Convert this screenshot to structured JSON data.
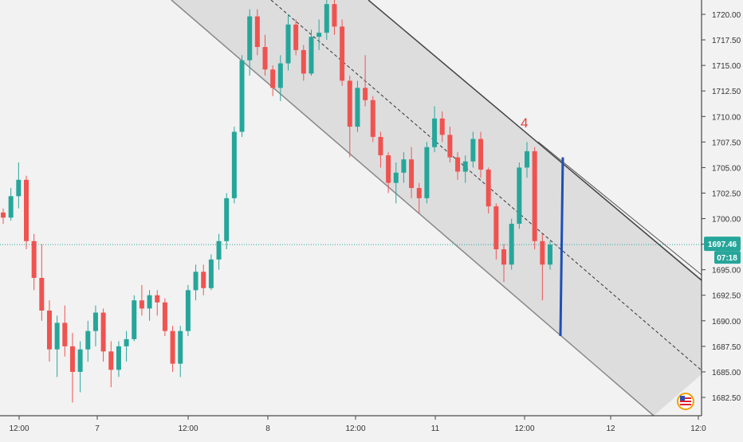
{
  "chart_data": {
    "type": "candlestick",
    "instrument_price_label": "1697.46",
    "countdown_label": "07:18",
    "wave_label": "4",
    "y_axis": {
      "min": 1680.0,
      "max": 1722.0,
      "ticks": [
        "1720.00",
        "1717.50",
        "1715.00",
        "1712.50",
        "1710.00",
        "1707.50",
        "1705.00",
        "1702.50",
        "1700.00",
        "1697.50",
        "1695.00",
        "1692.50",
        "1690.00",
        "1687.50",
        "1685.00",
        "1682.50"
      ]
    },
    "x_axis": {
      "ticks": [
        "12:00",
        "7",
        "12:00",
        "8",
        "12:00",
        "11",
        "12:00",
        "12",
        "12:0"
      ]
    },
    "current_price": 1697.46,
    "channel": {
      "upper": {
        "from": [
          0.0,
          1722.0
        ],
        "to": [
          1.0,
          1694.0
        ]
      },
      "lower": {
        "from": [
          0.0,
          1722.0
        ],
        "to": [
          0.75,
          1681.0
        ],
        "through": [
          1.0,
          1671.0
        ]
      },
      "middle": {
        "from": [
          0.34,
          1722.0
        ],
        "to": [
          1.0,
          1685.0
        ]
      }
    },
    "marker_line": {
      "x": 0.742,
      "from": 1706.0,
      "to": 1688.5
    },
    "colors": {
      "up": "#26a69a",
      "down": "#ef5350",
      "channel_fill": "#d9d9da",
      "price_line": "#26a69a",
      "marker": "#1e4fb5",
      "wave_label": "#e0403a",
      "axis_text": "#333333"
    },
    "candles_ohlc_sampled": [
      [
        1700.6,
        1701.0,
        1699.5,
        1700.1
      ],
      [
        1700.1,
        1703.0,
        1699.8,
        1702.2
      ],
      [
        1702.2,
        1705.5,
        1701.0,
        1703.8
      ],
      [
        1703.8,
        1704.2,
        1697.0,
        1697.8
      ],
      [
        1697.8,
        1698.5,
        1693.0,
        1694.2
      ],
      [
        1694.2,
        1697.5,
        1690.0,
        1691.0
      ],
      [
        1691.0,
        1692.0,
        1686.0,
        1687.2
      ],
      [
        1687.2,
        1690.5,
        1684.5,
        1689.8
      ],
      [
        1689.8,
        1691.5,
        1686.5,
        1687.5
      ],
      [
        1687.5,
        1688.8,
        1682.0,
        1685.0
      ],
      [
        1685.0,
        1688.0,
        1683.0,
        1687.2
      ],
      [
        1687.2,
        1690.0,
        1686.0,
        1689.0
      ],
      [
        1689.0,
        1691.5,
        1687.5,
        1690.8
      ],
      [
        1690.8,
        1691.2,
        1686.0,
        1687.0
      ],
      [
        1687.0,
        1688.0,
        1683.5,
        1685.2
      ],
      [
        1685.2,
        1688.0,
        1684.5,
        1687.5
      ],
      [
        1687.5,
        1689.0,
        1686.0,
        1688.2
      ],
      [
        1688.2,
        1692.5,
        1688.0,
        1692.0
      ],
      [
        1692.0,
        1693.5,
        1690.5,
        1691.2
      ],
      [
        1691.2,
        1693.0,
        1690.0,
        1692.5
      ],
      [
        1692.5,
        1693.0,
        1690.5,
        1691.8
      ],
      [
        1691.8,
        1692.2,
        1688.5,
        1689.0
      ],
      [
        1689.0,
        1689.5,
        1685.0,
        1685.8
      ],
      [
        1685.8,
        1689.5,
        1684.5,
        1689.0
      ],
      [
        1689.0,
        1693.5,
        1688.5,
        1693.0
      ],
      [
        1693.0,
        1695.5,
        1692.0,
        1694.8
      ],
      [
        1694.8,
        1695.5,
        1692.5,
        1693.2
      ],
      [
        1693.2,
        1696.5,
        1693.0,
        1696.0
      ],
      [
        1696.0,
        1698.5,
        1695.0,
        1697.8
      ],
      [
        1697.8,
        1702.5,
        1697.0,
        1702.0
      ],
      [
        1702.0,
        1709.0,
        1701.5,
        1708.5
      ],
      [
        1708.5,
        1716.0,
        1708.0,
        1715.5
      ],
      [
        1715.5,
        1720.5,
        1714.0,
        1719.8
      ],
      [
        1719.8,
        1720.5,
        1716.0,
        1716.8
      ],
      [
        1716.8,
        1718.0,
        1714.0,
        1714.6
      ],
      [
        1714.6,
        1715.0,
        1712.0,
        1712.8
      ],
      [
        1712.8,
        1716.0,
        1711.5,
        1715.2
      ],
      [
        1715.2,
        1720.0,
        1714.5,
        1719.0
      ],
      [
        1719.0,
        1719.5,
        1716.0,
        1716.5
      ],
      [
        1716.5,
        1717.0,
        1713.5,
        1714.2
      ],
      [
        1714.2,
        1718.5,
        1714.0,
        1717.8
      ],
      [
        1717.8,
        1719.5,
        1716.5,
        1718.2
      ],
      [
        1718.2,
        1722.0,
        1717.5,
        1721.0
      ],
      [
        1721.0,
        1721.5,
        1718.0,
        1718.8
      ],
      [
        1718.8,
        1719.5,
        1713.0,
        1713.5
      ],
      [
        1713.5,
        1714.0,
        1706.0,
        1709.0
      ],
      [
        1709.0,
        1713.5,
        1708.5,
        1712.8
      ],
      [
        1712.8,
        1716.0,
        1711.0,
        1711.6
      ],
      [
        1711.6,
        1712.0,
        1707.5,
        1708.0
      ],
      [
        1708.0,
        1708.5,
        1705.0,
        1706.2
      ],
      [
        1706.2,
        1706.5,
        1702.5,
        1703.5
      ],
      [
        1703.5,
        1705.5,
        1701.5,
        1704.5
      ],
      [
        1704.5,
        1706.5,
        1703.5,
        1705.8
      ],
      [
        1705.8,
        1707.0,
        1702.0,
        1703.0
      ],
      [
        1703.0,
        1703.5,
        1700.5,
        1702.0
      ],
      [
        1702.0,
        1707.5,
        1701.5,
        1707.0
      ],
      [
        1707.0,
        1711.0,
        1706.5,
        1709.8
      ],
      [
        1709.8,
        1710.5,
        1707.5,
        1708.2
      ],
      [
        1708.2,
        1709.0,
        1705.5,
        1706.0
      ],
      [
        1706.0,
        1706.5,
        1703.8,
        1704.6
      ],
      [
        1704.6,
        1706.2,
        1703.5,
        1705.6
      ],
      [
        1705.6,
        1708.5,
        1705.0,
        1707.8
      ],
      [
        1707.8,
        1708.5,
        1704.0,
        1704.8
      ],
      [
        1704.8,
        1705.0,
        1700.5,
        1701.2
      ],
      [
        1701.2,
        1701.5,
        1696.0,
        1697.0
      ],
      [
        1697.0,
        1697.5,
        1693.8,
        1695.5
      ],
      [
        1695.5,
        1700.0,
        1695.0,
        1699.5
      ],
      [
        1699.5,
        1705.5,
        1699.0,
        1705.0
      ],
      [
        1705.0,
        1707.5,
        1704.0,
        1706.6
      ],
      [
        1706.6,
        1707.0,
        1697.0,
        1697.8
      ],
      [
        1697.8,
        1698.5,
        1692.0,
        1695.5
      ],
      [
        1695.5,
        1697.8,
        1695.0,
        1697.46
      ]
    ]
  }
}
